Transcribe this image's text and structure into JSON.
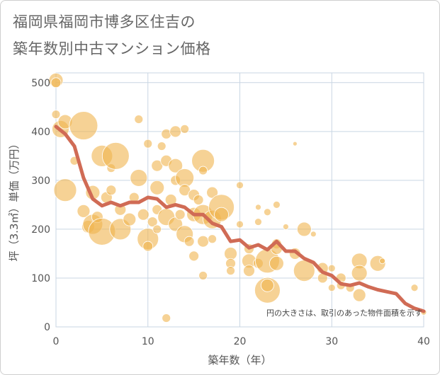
{
  "title_line1": "福岡県福岡市博多区住吉の",
  "title_line2": "築年数別中古マンション価格",
  "chart_data": {
    "type": "scatter",
    "xlabel": "築年数（年）",
    "ylabel": "坪（3.3㎡）単価（万円）",
    "xlim": [
      0,
      40
    ],
    "ylim": [
      0,
      520
    ],
    "x_ticks": [
      0,
      10,
      20,
      30,
      40
    ],
    "y_ticks": [
      0,
      100,
      200,
      300,
      400,
      500
    ],
    "grid": true,
    "note": "円の大きさは、取引のあった物件面積を示す",
    "colors": {
      "bubble": "#F0B44F",
      "line": "#D06B55",
      "grid": "#c9d6e3"
    },
    "trend_line": {
      "x": [
        0,
        1,
        2,
        3,
        4,
        5,
        6,
        7,
        8,
        9,
        10,
        11,
        12,
        13,
        14,
        15,
        16,
        17,
        18,
        19,
        20,
        21,
        22,
        23,
        24,
        25,
        26,
        27,
        28,
        29,
        30,
        31,
        32,
        33,
        34,
        35,
        36,
        37,
        38,
        39,
        40
      ],
      "y": [
        410,
        395,
        370,
        305,
        262,
        248,
        255,
        248,
        255,
        255,
        265,
        262,
        245,
        250,
        245,
        230,
        230,
        212,
        205,
        175,
        178,
        162,
        168,
        158,
        175,
        155,
        155,
        140,
        132,
        112,
        105,
        88,
        85,
        90,
        82,
        76,
        72,
        68,
        48,
        38,
        32
      ]
    },
    "points": [
      {
        "x": 0,
        "y": 505,
        "s": 10
      },
      {
        "x": 0,
        "y": 500,
        "s": 7
      },
      {
        "x": 0,
        "y": 435,
        "s": 6
      },
      {
        "x": 0.5,
        "y": 405,
        "s": 12
      },
      {
        "x": 1,
        "y": 420,
        "s": 10
      },
      {
        "x": 1,
        "y": 280,
        "s": 16
      },
      {
        "x": 2,
        "y": 340,
        "s": 6
      },
      {
        "x": 3,
        "y": 412,
        "s": 20
      },
      {
        "x": 3,
        "y": 237,
        "s": 9
      },
      {
        "x": 3.5,
        "y": 205,
        "s": 9
      },
      {
        "x": 4,
        "y": 275,
        "s": 10
      },
      {
        "x": 4,
        "y": 210,
        "s": 14
      },
      {
        "x": 4.5,
        "y": 225,
        "s": 8
      },
      {
        "x": 5,
        "y": 195,
        "s": 19
      },
      {
        "x": 5,
        "y": 350,
        "s": 15
      },
      {
        "x": 5.5,
        "y": 265,
        "s": 8
      },
      {
        "x": 6,
        "y": 325,
        "s": 6
      },
      {
        "x": 6,
        "y": 280,
        "s": 7
      },
      {
        "x": 6.5,
        "y": 350,
        "s": 19
      },
      {
        "x": 7,
        "y": 200,
        "s": 15
      },
      {
        "x": 7,
        "y": 240,
        "s": 8
      },
      {
        "x": 8,
        "y": 220,
        "s": 9
      },
      {
        "x": 8.5,
        "y": 265,
        "s": 7
      },
      {
        "x": 9,
        "y": 425,
        "s": 6
      },
      {
        "x": 9,
        "y": 305,
        "s": 12
      },
      {
        "x": 9.5,
        "y": 230,
        "s": 8
      },
      {
        "x": 10,
        "y": 375,
        "s": 6
      },
      {
        "x": 10,
        "y": 180,
        "s": 15
      },
      {
        "x": 10,
        "y": 165,
        "s": 7
      },
      {
        "x": 10.5,
        "y": 215,
        "s": 7
      },
      {
        "x": 11,
        "y": 330,
        "s": 8
      },
      {
        "x": 11,
        "y": 285,
        "s": 10
      },
      {
        "x": 11,
        "y": 240,
        "s": 7
      },
      {
        "x": 11,
        "y": 200,
        "s": 6
      },
      {
        "x": 11.5,
        "y": 370,
        "s": 6
      },
      {
        "x": 12,
        "y": 395,
        "s": 7
      },
      {
        "x": 12,
        "y": 340,
        "s": 8
      },
      {
        "x": 12,
        "y": 225,
        "s": 12
      },
      {
        "x": 12,
        "y": 18,
        "s": 6
      },
      {
        "x": 12.5,
        "y": 260,
        "s": 8
      },
      {
        "x": 13,
        "y": 400,
        "s": 8
      },
      {
        "x": 13,
        "y": 330,
        "s": 10
      },
      {
        "x": 13,
        "y": 300,
        "s": 7
      },
      {
        "x": 13,
        "y": 210,
        "s": 10
      },
      {
        "x": 13.5,
        "y": 230,
        "s": 7
      },
      {
        "x": 14,
        "y": 405,
        "s": 6
      },
      {
        "x": 14,
        "y": 305,
        "s": 13
      },
      {
        "x": 14,
        "y": 280,
        "s": 8
      },
      {
        "x": 14,
        "y": 190,
        "s": 12
      },
      {
        "x": 14.5,
        "y": 175,
        "s": 7
      },
      {
        "x": 15,
        "y": 270,
        "s": 8
      },
      {
        "x": 15,
        "y": 230,
        "s": 10
      },
      {
        "x": 15,
        "y": 145,
        "s": 7
      },
      {
        "x": 15.5,
        "y": 260,
        "s": 7
      },
      {
        "x": 16,
        "y": 340,
        "s": 16
      },
      {
        "x": 16,
        "y": 320,
        "s": 6
      },
      {
        "x": 16,
        "y": 230,
        "s": 14
      },
      {
        "x": 16,
        "y": 175,
        "s": 8
      },
      {
        "x": 16,
        "y": 105,
        "s": 6
      },
      {
        "x": 17,
        "y": 275,
        "s": 8
      },
      {
        "x": 17,
        "y": 220,
        "s": 13
      },
      {
        "x": 17,
        "y": 180,
        "s": 6
      },
      {
        "x": 18,
        "y": 245,
        "s": 18
      },
      {
        "x": 18,
        "y": 230,
        "s": 10
      },
      {
        "x": 19,
        "y": 150,
        "s": 9
      },
      {
        "x": 19,
        "y": 130,
        "s": 7
      },
      {
        "x": 19,
        "y": 115,
        "s": 6
      },
      {
        "x": 20,
        "y": 290,
        "s": 5
      },
      {
        "x": 20,
        "y": 210,
        "s": 5
      },
      {
        "x": 21,
        "y": 160,
        "s": 7
      },
      {
        "x": 21,
        "y": 135,
        "s": 10
      },
      {
        "x": 21,
        "y": 115,
        "s": 8
      },
      {
        "x": 22,
        "y": 245,
        "s": 4
      },
      {
        "x": 22,
        "y": 215,
        "s": 5
      },
      {
        "x": 22,
        "y": 130,
        "s": 7
      },
      {
        "x": 23,
        "y": 235,
        "s": 5
      },
      {
        "x": 23,
        "y": 135,
        "s": 17
      },
      {
        "x": 23,
        "y": 75,
        "s": 18
      },
      {
        "x": 23,
        "y": 85,
        "s": 9
      },
      {
        "x": 24,
        "y": 250,
        "s": 5
      },
      {
        "x": 24,
        "y": 170,
        "s": 7
      },
      {
        "x": 24,
        "y": 160,
        "s": 8
      },
      {
        "x": 24,
        "y": 130,
        "s": 10
      },
      {
        "x": 25,
        "y": 205,
        "s": 4
      },
      {
        "x": 26,
        "y": 150,
        "s": 8
      },
      {
        "x": 27,
        "y": 200,
        "s": 10
      },
      {
        "x": 27,
        "y": 115,
        "s": 15
      },
      {
        "x": 28,
        "y": 190,
        "s": 4
      },
      {
        "x": 29,
        "y": 120,
        "s": 8
      },
      {
        "x": 29,
        "y": 100,
        "s": 7
      },
      {
        "x": 30,
        "y": 120,
        "s": 5
      },
      {
        "x": 30,
        "y": 80,
        "s": 5
      },
      {
        "x": 31,
        "y": 100,
        "s": 7
      },
      {
        "x": 31,
        "y": 85,
        "s": 6
      },
      {
        "x": 32,
        "y": 80,
        "s": 6
      },
      {
        "x": 33,
        "y": 135,
        "s": 11
      },
      {
        "x": 33,
        "y": 110,
        "s": 11
      },
      {
        "x": 33,
        "y": 65,
        "s": 9
      },
      {
        "x": 35,
        "y": 130,
        "s": 11
      },
      {
        "x": 26,
        "y": 375,
        "s": 3
      },
      {
        "x": 35.5,
        "y": 135,
        "s": 4
      },
      {
        "x": 39,
        "y": 80,
        "s": 5
      },
      {
        "x": 40,
        "y": 30,
        "s": 4
      }
    ]
  }
}
